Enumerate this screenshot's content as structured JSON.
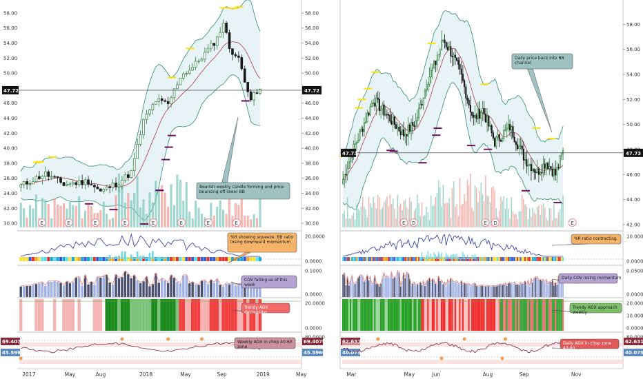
{
  "chart_data": [
    {
      "type": "candlestick",
      "title": "",
      "timeframe_word": "weekly",
      "current_price": "47.72",
      "y_ticks": [
        "58.00",
        "56.00",
        "54.00",
        "52.00",
        "50.00",
        "48.00",
        "46.00",
        "44.00",
        "42.00",
        "40.00",
        "38.00",
        "36.00",
        "34.00",
        "32.00",
        "30.00"
      ],
      "x_ticks": [
        "2017",
        "May",
        "Aug",
        "2018",
        "May",
        "Sep",
        "2019",
        "May"
      ],
      "ylim": [
        29,
        59
      ],
      "earnings_markers": [
        "E",
        "E",
        "E",
        "E",
        "E",
        "E",
        "E",
        "E"
      ],
      "callouts": [
        {
          "name": "price",
          "text": "Bearish weekly candle forming and price bouncing off lower BB",
          "color": "#9ec2c2"
        },
        {
          "name": "wr",
          "text": "%R showing squeeze. BB ratio losing downward momentum",
          "color": "#f5b36a"
        },
        {
          "name": "cov",
          "text": "COV falling as of this week",
          "color": "#b3a3d3"
        },
        {
          "name": "adx",
          "text": "Trendy ADX decreasing",
          "color": "#f26a6a"
        },
        {
          "name": "chop",
          "text": "Weekly ADX in chop 40-60 zone",
          "color": "#c9909e"
        }
      ],
      "panels": [
        {
          "name": "wr",
          "ticks": [
            "20.0000",
            "0.0000"
          ]
        },
        {
          "name": "cov",
          "ticks": [
            "0.1000",
            "0.0000"
          ]
        },
        {
          "name": "adx",
          "ticks": [
            "20.0000",
            "0.0000"
          ]
        },
        {
          "name": "chop",
          "ticks": [
            "80.0000"
          ],
          "tags": [
            "69.4079",
            "45.5969"
          ]
        }
      ]
    },
    {
      "type": "candlestick",
      "title": "",
      "timeframe_word": "daily",
      "current_price": "47.73",
      "y_ticks": [
        "58.00",
        "56.00",
        "54.00",
        "52.00",
        "50.00",
        "48.00",
        "46.00",
        "44.00",
        "42.00"
      ],
      "x_ticks": [
        "Mar",
        "May",
        "Jun",
        "Aug",
        "Sep",
        "Nov"
      ],
      "ylim": [
        41.5,
        59.5
      ],
      "earnings_markers": [
        "E",
        "D",
        "E",
        "D",
        "E"
      ],
      "callouts": [
        {
          "name": "price",
          "text": "Daily price back into BB channel",
          "color": "#9ec2c2"
        },
        {
          "name": "wr",
          "text": "%R ratio contracting",
          "color": "#f5b36a"
        },
        {
          "name": "cov",
          "text": "Daily COV losing momentum",
          "color": "#b3a3d3"
        },
        {
          "name": "adx",
          "text": "Trendy ADX approach weekly",
          "color": "#7dbf6a"
        },
        {
          "name": "chop",
          "text": "Daily ADX in chop zone 40-60",
          "color": "#e05a5a"
        }
      ],
      "panels": [
        {
          "name": "wr",
          "ticks": [
            "10.0000",
            "0.0000"
          ]
        },
        {
          "name": "cov",
          "ticks": [
            "0.0500",
            "0.0000"
          ]
        },
        {
          "name": "adx",
          "ticks": [
            "20.0000",
            "10.0000",
            "0.0000"
          ]
        },
        {
          "name": "chop",
          "ticks": [
            "80.0000"
          ],
          "tags": [
            "62.6316",
            "40.0752"
          ]
        }
      ]
    }
  ]
}
